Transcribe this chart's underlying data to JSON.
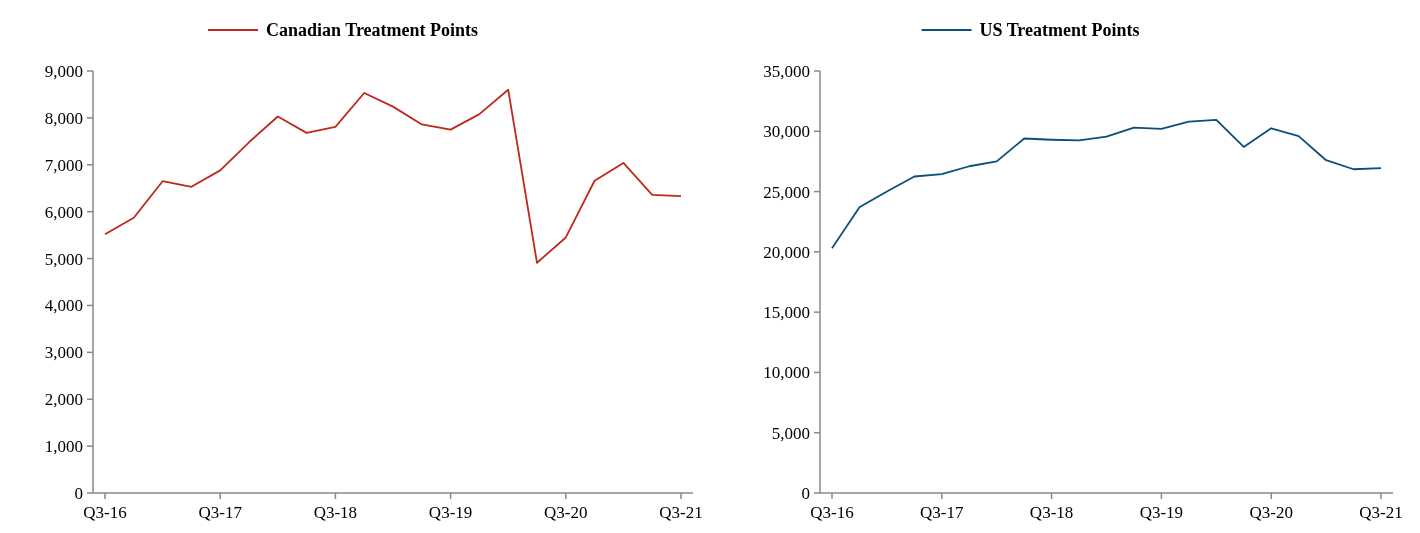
{
  "chart_data": [
    {
      "type": "line",
      "categories": [
        "Q3-16",
        null,
        null,
        null,
        "Q3-17",
        null,
        null,
        null,
        "Q3-18",
        null,
        null,
        null,
        "Q3-19",
        null,
        null,
        null,
        "Q3-20",
        null,
        null,
        null,
        "Q3-21"
      ],
      "ylim": [
        0,
        9000
      ],
      "yticks": [
        {
          "value": 0,
          "label": "0"
        },
        {
          "value": 1000,
          "label": "1,000"
        },
        {
          "value": 2000,
          "label": "2,000"
        },
        {
          "value": 3000,
          "label": "3,000"
        },
        {
          "value": 4000,
          "label": "4,000"
        },
        {
          "value": 5000,
          "label": "5,000"
        },
        {
          "value": 6000,
          "label": "6,000"
        },
        {
          "value": 7000,
          "label": "7,000"
        },
        {
          "value": 8000,
          "label": "8,000"
        },
        {
          "value": 9000,
          "label": "9,000"
        }
      ],
      "legend": "top",
      "grid": false,
      "series": [
        {
          "name": "Canadian Treatment Points",
          "color": "#c0281e",
          "values": [
            5520,
            5870,
            6650,
            6530,
            6880,
            7480,
            8030,
            7680,
            7810,
            8530,
            8240,
            7860,
            7750,
            8080,
            8600,
            4910,
            5450,
            6660,
            7040,
            6360,
            6330
          ]
        }
      ]
    },
    {
      "type": "line",
      "categories": [
        "Q3-16",
        null,
        null,
        null,
        "Q3-17",
        null,
        null,
        null,
        "Q3-18",
        null,
        null,
        null,
        "Q3-19",
        null,
        null,
        null,
        "Q3-20",
        null,
        null,
        null,
        "Q3-21"
      ],
      "ylim": [
        0,
        35000
      ],
      "yticks": [
        {
          "value": 0,
          "label": "0"
        },
        {
          "value": 5000,
          "label": "5,000"
        },
        {
          "value": 10000,
          "label": "10,000"
        },
        {
          "value": 15000,
          "label": "15,000"
        },
        {
          "value": 20000,
          "label": "20,000"
        },
        {
          "value": 25000,
          "label": "25,000"
        },
        {
          "value": 30000,
          "label": "30,000"
        },
        {
          "value": 35000,
          "label": "35,000"
        }
      ],
      "legend": "top",
      "grid": false,
      "series": [
        {
          "name": "US Treatment Points",
          "color": "#0b4f7c",
          "values": [
            20300,
            23700,
            25000,
            26250,
            26450,
            27100,
            27500,
            29400,
            29300,
            29250,
            29550,
            30300,
            30200,
            30800,
            30950,
            28700,
            30250,
            29600,
            27600,
            26850,
            26950
          ]
        }
      ]
    }
  ]
}
